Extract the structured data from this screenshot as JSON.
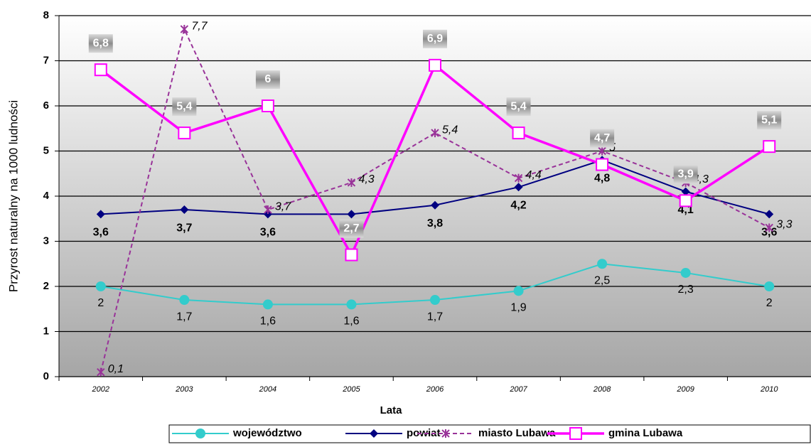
{
  "chart_data": {
    "type": "line",
    "x_label": "Lata",
    "y_label": "Przyrost naturalny na 1000 ludności",
    "categories": [
      "2002",
      "2003",
      "2004",
      "2005",
      "2006",
      "2007",
      "2008",
      "2009",
      "2010"
    ],
    "ylim": [
      0,
      8
    ],
    "yticks": [
      0,
      1,
      2,
      3,
      4,
      5,
      6,
      7,
      8
    ],
    "grid": true,
    "series": [
      {
        "name": "województwo",
        "color": "#33cccc",
        "marker": "circle",
        "values": [
          2,
          1.7,
          1.6,
          1.6,
          1.7,
          1.9,
          2.5,
          2.3,
          2
        ],
        "value_labels": [
          "2",
          "1,7",
          "1,6",
          "1,6",
          "1,7",
          "1,9",
          "2,5",
          "2,3",
          "2"
        ]
      },
      {
        "name": "powiat",
        "color": "#000080",
        "marker": "diamond",
        "values": [
          3.6,
          3.7,
          3.6,
          3.6,
          3.8,
          4.2,
          4.8,
          4.1,
          3.6
        ],
        "value_labels": [
          "3,6",
          "3,7",
          "3,6",
          "3,6",
          "3,8",
          "4,2",
          "4,8",
          "4,1",
          "3,6"
        ]
      },
      {
        "name": "miasto Lubawa",
        "color": "#993399",
        "marker": "star",
        "dashed": true,
        "values": [
          0.1,
          7.7,
          3.7,
          4.3,
          5.4,
          4.4,
          5,
          4.3,
          3.3
        ],
        "value_labels": [
          "0,1",
          "7,7",
          "3,7",
          "4,3",
          "5,4",
          "4,4",
          "5",
          "4,3",
          "3,3"
        ]
      },
      {
        "name": "gmina Lubawa",
        "color": "#ff00ff",
        "marker": "square",
        "values": [
          6.8,
          5.4,
          6,
          2.7,
          6.9,
          5.4,
          4.7,
          3.9,
          5.1
        ],
        "value_labels": [
          "6,8",
          "5,4",
          "6",
          "2,7",
          "6,9",
          "5,4",
          "4,7",
          "3,9",
          "5,1"
        ]
      }
    ]
  }
}
